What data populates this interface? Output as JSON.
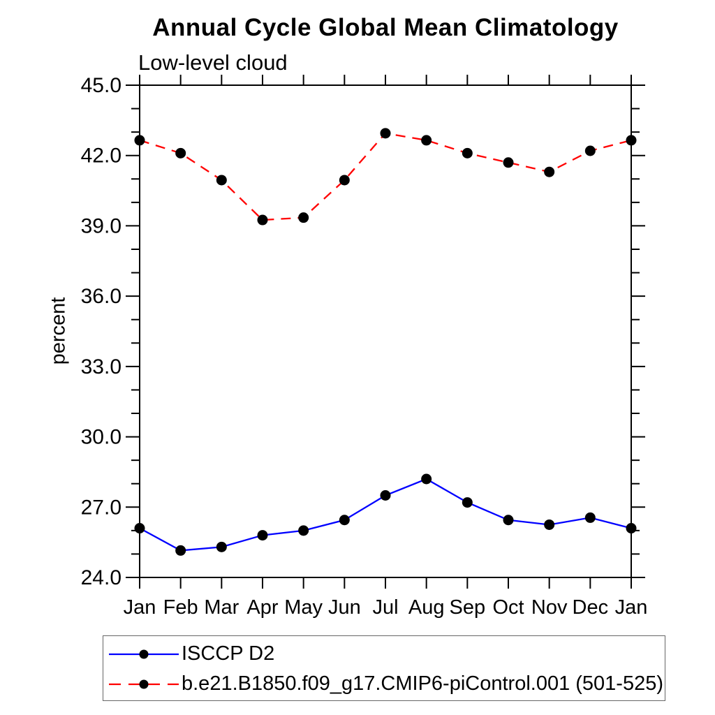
{
  "chart_data": {
    "type": "line",
    "title": "Annual Cycle Global Mean Climatology",
    "subtitle": "Low-level cloud",
    "ylabel": "percent",
    "xlabel": "",
    "categories": [
      "Jan",
      "Feb",
      "Mar",
      "Apr",
      "May",
      "Jun",
      "Jul",
      "Aug",
      "Sep",
      "Oct",
      "Nov",
      "Dec",
      "Jan"
    ],
    "series": [
      {
        "name": "ISCCP D2",
        "color": "#0000ff",
        "line_style": "solid",
        "marker": "filled-black-circle",
        "values": [
          26.1,
          25.15,
          25.3,
          25.8,
          26.0,
          26.45,
          27.5,
          28.2,
          27.2,
          26.45,
          26.25,
          26.55,
          26.1
        ]
      },
      {
        "name": "b.e21.B1850.f09_g17.CMIP6-piControl.001 (501-525)",
        "color": "#ff0000",
        "line_style": "dashed",
        "marker": "filled-black-circle",
        "values": [
          42.65,
          42.1,
          40.95,
          39.25,
          39.35,
          40.95,
          42.95,
          42.65,
          42.1,
          41.7,
          41.3,
          42.2,
          42.65
        ]
      }
    ],
    "ylim": [
      24.0,
      45.0
    ],
    "yticks": [
      24,
      27,
      30,
      33,
      36,
      39,
      42,
      45
    ],
    "ytick_labels": [
      "24.0",
      "27.0",
      "30.0",
      "33.0",
      "36.0",
      "39.0",
      "42.0",
      "45.0"
    ],
    "minor_y_tick_step": 1.0,
    "grid": false,
    "tick_direction": "out",
    "axis_color": "#000000",
    "marker_color": "#000000",
    "legend_position": "below-plot-left"
  }
}
